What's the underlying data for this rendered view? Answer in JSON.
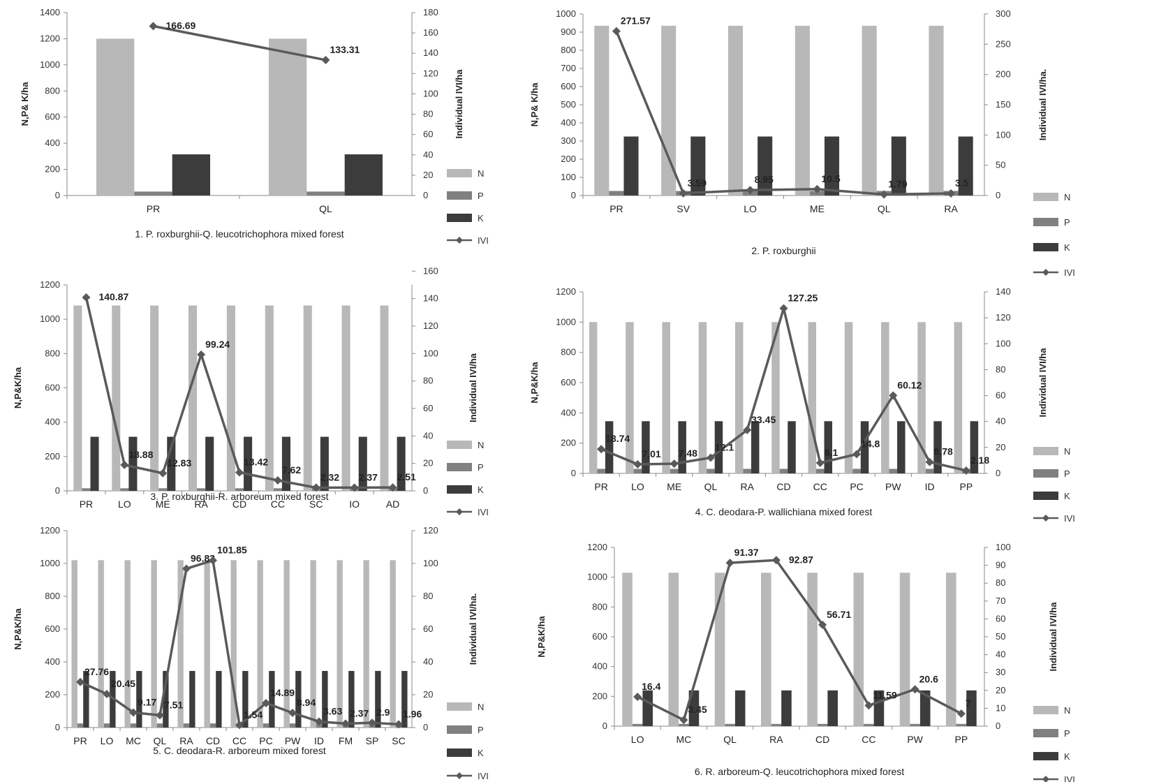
{
  "colors": {
    "N": "#b8b8b8",
    "P": "#808080",
    "K": "#3c3c3c",
    "IVI": "#5a5a5a",
    "axis": "#888888"
  },
  "chart_data": [
    {
      "type": "bar",
      "title": "1. P. roxburghii-Q. leucotrichophora mixed forest",
      "ylabel": "N,P& K/ha",
      "y2label": "Individual IVI/ha",
      "ylim": [
        0,
        1400
      ],
      "y2lim": [
        0,
        180
      ],
      "yticks": [
        0,
        200,
        400,
        600,
        800,
        1000,
        1200,
        1400
      ],
      "y2ticks": [
        0,
        20,
        40,
        60,
        80,
        100,
        120,
        140,
        160,
        180
      ],
      "categories": [
        "PR",
        "QL"
      ],
      "series": [
        {
          "name": "N",
          "kind": "bar",
          "values": [
            1200,
            1200
          ]
        },
        {
          "name": "P",
          "kind": "bar",
          "values": [
            30,
            30
          ]
        },
        {
          "name": "K",
          "kind": "bar",
          "values": [
            315,
            315
          ]
        },
        {
          "name": "IVI",
          "kind": "line",
          "axis": "right",
          "values": [
            166.69,
            133.31
          ]
        }
      ],
      "data_labels": [
        "166.69",
        "133.31"
      ],
      "legend": "right"
    },
    {
      "type": "bar",
      "title": "2. P. roxburghii",
      "ylabel": "N,P& K/ha",
      "y2label": "Individual IVI/ha.",
      "ylim": [
        0,
        1000
      ],
      "y2lim": [
        0,
        300
      ],
      "yticks": [
        0,
        100,
        200,
        300,
        400,
        500,
        600,
        700,
        800,
        900,
        1000
      ],
      "y2ticks": [
        0,
        50,
        100,
        150,
        200,
        250,
        300
      ],
      "categories": [
        "PR",
        "SV",
        "LO",
        "ME",
        "QL",
        "RA"
      ],
      "series": [
        {
          "name": "N",
          "kind": "bar",
          "values": [
            935,
            935,
            935,
            935,
            935,
            935
          ]
        },
        {
          "name": "P",
          "kind": "bar",
          "values": [
            25,
            25,
            25,
            25,
            25,
            25
          ]
        },
        {
          "name": "K",
          "kind": "bar",
          "values": [
            325,
            325,
            325,
            325,
            325,
            325
          ]
        },
        {
          "name": "IVI",
          "kind": "line",
          "axis": "right",
          "values": [
            271.57,
            3.59,
            8.95,
            10.5,
            1.79,
            3.5
          ]
        }
      ],
      "data_labels": [
        "271.57",
        "3.59",
        "8.95",
        "10.5",
        "1.79",
        "3.5"
      ],
      "legend": "right"
    },
    {
      "type": "bar",
      "title": "3. P. roxburghii-R. arboreum mixed forest",
      "ylabel": "N,P&K/ha",
      "y2label": "Individual IVI/ha",
      "ylim": [
        0,
        1200
      ],
      "y2lim": [
        0,
        150
      ],
      "yticks": [
        0,
        200,
        400,
        600,
        800,
        1000,
        1200
      ],
      "y2ticks": [
        0,
        20,
        40,
        60,
        80,
        100,
        120,
        140,
        160
      ],
      "categories": [
        "PR",
        "LO",
        "ME",
        "RA",
        "CD",
        "CC",
        "SC",
        "IO",
        "AD"
      ],
      "series": [
        {
          "name": "N",
          "kind": "bar",
          "values": [
            1080,
            1080,
            1080,
            1080,
            1080,
            1080,
            1080,
            1080,
            1080
          ]
        },
        {
          "name": "P",
          "kind": "bar",
          "values": [
            15,
            15,
            15,
            15,
            15,
            15,
            15,
            15,
            15
          ]
        },
        {
          "name": "K",
          "kind": "bar",
          "values": [
            315,
            315,
            315,
            315,
            315,
            315,
            315,
            315,
            315
          ]
        },
        {
          "name": "IVI",
          "kind": "line",
          "axis": "right",
          "values": [
            140.87,
            18.88,
            12.83,
            99.24,
            13.42,
            7.62,
            2.32,
            2.37,
            2.51
          ]
        }
      ],
      "data_labels": [
        "140.87",
        "18.88",
        "12.83",
        "99.24",
        "13.42",
        "7.62",
        "2.32",
        "2.37",
        "2.51"
      ],
      "legend": "right"
    },
    {
      "type": "bar",
      "title": "4. C. deodara-P. wallichiana mixed forest",
      "ylabel": "N,P&K/ha",
      "y2label": "Individual IVI/ha",
      "ylim": [
        0,
        1200
      ],
      "y2lim": [
        0,
        140
      ],
      "yticks": [
        0,
        200,
        400,
        600,
        800,
        1000,
        1200
      ],
      "y2ticks": [
        0,
        20,
        40,
        60,
        80,
        100,
        120,
        140
      ],
      "categories": [
        "PR",
        "LO",
        "ME",
        "QL",
        "RA",
        "CD",
        "CC",
        "PC",
        "PW",
        "ID",
        "PP"
      ],
      "series": [
        {
          "name": "N",
          "kind": "bar",
          "values": [
            1000,
            1000,
            1000,
            1000,
            1000,
            1000,
            1000,
            1000,
            1000,
            1000,
            1000
          ]
        },
        {
          "name": "P",
          "kind": "bar",
          "values": [
            30,
            30,
            30,
            30,
            30,
            30,
            30,
            30,
            30,
            30,
            30
          ]
        },
        {
          "name": "K",
          "kind": "bar",
          "values": [
            345,
            345,
            345,
            345,
            345,
            345,
            345,
            345,
            345,
            345,
            345
          ]
        },
        {
          "name": "IVI",
          "kind": "line",
          "axis": "right",
          "values": [
            18.74,
            7.01,
            7.48,
            12.1,
            33.45,
            127.25,
            8.1,
            14.8,
            60.12,
            8.78,
            2.18
          ]
        }
      ],
      "data_labels": [
        "18.74",
        "7.01",
        "7.48",
        "12.1",
        "33.45",
        "127.25",
        "8.1",
        "14.8",
        "60.12",
        "8.78",
        "2.18"
      ],
      "legend": "right"
    },
    {
      "type": "bar",
      "title": "5. C. deodara-R. arboreum mixed forest",
      "ylabel": "N,P&K/ha",
      "y2label": "Individual IVI/ha.",
      "ylim": [
        0,
        1200
      ],
      "y2lim": [
        0,
        120
      ],
      "yticks": [
        0,
        200,
        400,
        600,
        800,
        1000,
        1200
      ],
      "y2ticks": [
        0,
        20,
        40,
        60,
        80,
        100,
        120
      ],
      "categories": [
        "PR",
        "LO",
        "MC",
        "QL",
        "RA",
        "CD",
        "CC",
        "PC",
        "PW",
        "ID",
        "FM",
        "SP",
        "SC"
      ],
      "series": [
        {
          "name": "N",
          "kind": "bar",
          "values": [
            1020,
            1020,
            1020,
            1020,
            1020,
            1020,
            1020,
            1020,
            1020,
            1020,
            1020,
            1020,
            1020
          ]
        },
        {
          "name": "P",
          "kind": "bar",
          "values": [
            25,
            25,
            25,
            25,
            25,
            25,
            25,
            25,
            25,
            25,
            25,
            25,
            25
          ]
        },
        {
          "name": "K",
          "kind": "bar",
          "values": [
            345,
            345,
            345,
            345,
            345,
            345,
            345,
            345,
            345,
            345,
            345,
            345,
            345
          ]
        },
        {
          "name": "IVI",
          "kind": "line",
          "axis": "right",
          "values": [
            27.76,
            20.45,
            9.17,
            7.51,
            96.83,
            101.85,
            1.54,
            14.89,
            8.94,
            3.63,
            2.37,
            2.9,
            1.96
          ]
        }
      ],
      "data_labels": [
        "27.76",
        "20.45",
        "9.17",
        "7.51",
        "96.83",
        "101.85",
        "1.54",
        "14.89",
        "8.94",
        "3.63",
        "2.37",
        "2.9",
        "1.96"
      ],
      "legend": "right"
    },
    {
      "type": "bar",
      "title": "6. R. arboreum-Q. leucotrichophora mixed forest",
      "ylabel": "N,P&K/ha",
      "y2label": "Individual IVI/ha",
      "ylim": [
        0,
        1200
      ],
      "y2lim": [
        0,
        100
      ],
      "yticks": [
        0,
        200,
        400,
        600,
        800,
        1000,
        1200
      ],
      "y2ticks": [
        0,
        10,
        20,
        30,
        40,
        50,
        60,
        70,
        80,
        90,
        100
      ],
      "categories": [
        "LO",
        "MC",
        "QL",
        "RA",
        "CD",
        "CC",
        "PW",
        "PP"
      ],
      "series": [
        {
          "name": "N",
          "kind": "bar",
          "values": [
            1030,
            1030,
            1030,
            1030,
            1030,
            1030,
            1030,
            1030
          ]
        },
        {
          "name": "P",
          "kind": "bar",
          "values": [
            15,
            15,
            15,
            15,
            15,
            15,
            15,
            15
          ]
        },
        {
          "name": "K",
          "kind": "bar",
          "values": [
            240,
            240,
            240,
            240,
            240,
            240,
            240,
            240
          ]
        },
        {
          "name": "IVI",
          "kind": "line",
          "axis": "right",
          "values": [
            16.4,
            3.45,
            91.37,
            92.87,
            56.71,
            11.59,
            20.6,
            7
          ]
        }
      ],
      "data_labels": [
        "16.4",
        "3.45",
        "91.37",
        "92.87",
        "56.71",
        "11.59",
        "20.6",
        "7"
      ],
      "legend": "right"
    }
  ]
}
